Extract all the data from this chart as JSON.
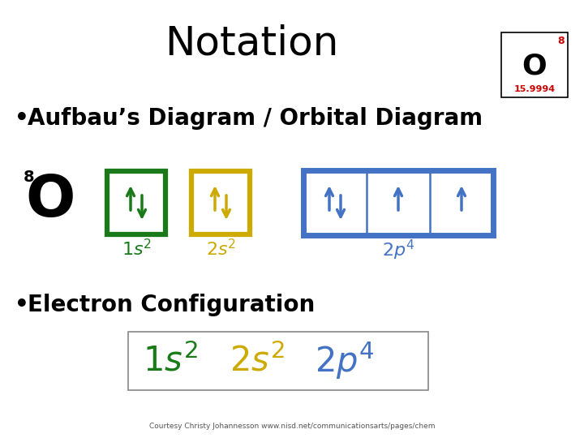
{
  "title": "Notation",
  "title_fontsize": 36,
  "background_color": "#ffffff",
  "element_symbol": "O",
  "element_number": "8",
  "element_mass": "15.9994",
  "bullet1": "Aufbau’s Diagram / Orbital Diagram",
  "bullet2": "Electron Configuration",
  "green_color": "#1a7a1a",
  "yellow_color": "#ccaa00",
  "blue_color": "#4472c4",
  "black_color": "#000000",
  "red_color": "#cc0000",
  "courtesy": "Courtesy Christy Johannesson www.nisd.net/communicationsarts/pages/chem",
  "figw": 7.2,
  "figh": 5.4,
  "dpi": 100
}
